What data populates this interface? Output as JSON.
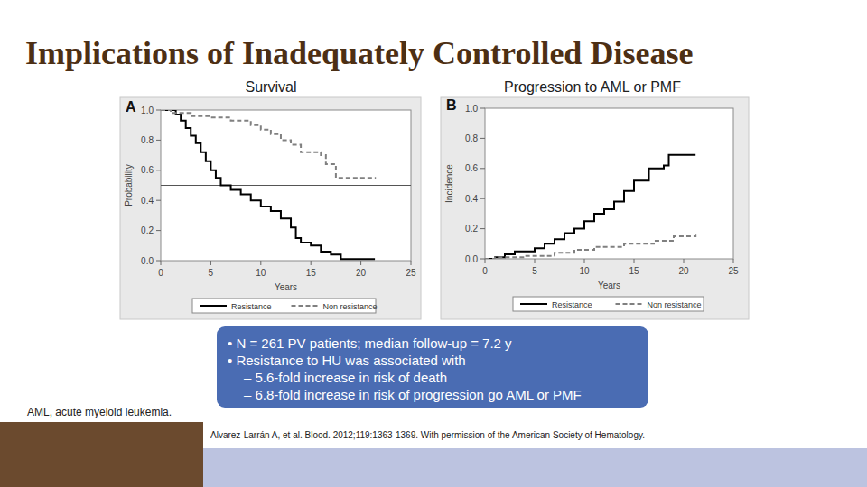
{
  "title": "Implications of Inadequately Controlled Disease",
  "chart_data": [
    {
      "type": "step",
      "title": "Survival",
      "panel_label": "A",
      "x_label": "Years",
      "y_label": "Probability",
      "xlim": [
        0,
        25
      ],
      "ylim": [
        0,
        1
      ],
      "xticks": [
        0,
        5,
        10,
        15,
        20,
        25
      ],
      "yticks": [
        {
          "value": 0,
          "label": "0.0"
        },
        0.2,
        0.4,
        0.6,
        0.8,
        {
          "value": 1,
          "label": "1.0"
        }
      ],
      "legend": "bottom",
      "reference_lines": [
        0.5
      ],
      "series": [
        {
          "name": "Resistance",
          "color": "#000000",
          "line_style": "solid",
          "x": [
            0,
            1.5,
            2,
            2.5,
            3,
            3.5,
            4,
            4.5,
            5,
            5.5,
            6,
            7,
            8,
            9,
            10,
            11,
            12,
            13,
            13.5,
            14,
            15,
            16,
            17,
            18,
            21.4
          ],
          "values": [
            1,
            0.97,
            0.93,
            0.88,
            0.83,
            0.78,
            0.72,
            0.66,
            0.6,
            0.55,
            0.5,
            0.47,
            0.44,
            0.4,
            0.36,
            0.33,
            0.28,
            0.22,
            0.15,
            0.12,
            0.1,
            0.06,
            0.04,
            0.01,
            0.01
          ]
        },
        {
          "name": "Non resistance",
          "color": "#808080",
          "line_style": "dashed",
          "x": [
            0,
            1,
            3,
            5,
            7,
            9,
            10,
            11,
            12,
            13,
            14,
            16,
            16.5,
            17.5,
            21.5
          ],
          "values": [
            1,
            0.98,
            0.96,
            0.95,
            0.93,
            0.9,
            0.87,
            0.84,
            0.8,
            0.77,
            0.72,
            0.7,
            0.64,
            0.55,
            0.55
          ]
        }
      ]
    },
    {
      "type": "step",
      "title": "Progression to AML or PMF",
      "panel_label": "B",
      "x_label": "Years",
      "y_label": "Incidence",
      "xlim": [
        0,
        25
      ],
      "ylim": [
        0,
        1
      ],
      "xticks": [
        0,
        5,
        10,
        15,
        20,
        25
      ],
      "yticks": [
        {
          "value": 0,
          "label": "0.0"
        },
        0.2,
        0.4,
        0.6,
        0.8,
        {
          "value": 1,
          "label": "1.0"
        }
      ],
      "legend": "bottom",
      "series": [
        {
          "name": "Resistance",
          "color": "#000000",
          "line_style": "solid",
          "x": [
            0,
            1,
            2,
            3,
            5,
            6,
            7,
            8,
            9,
            10,
            11,
            12,
            13,
            14,
            15,
            16.5,
            18,
            18.5,
            21.2
          ],
          "values": [
            0,
            0.01,
            0.03,
            0.05,
            0.07,
            0.1,
            0.13,
            0.17,
            0.2,
            0.25,
            0.3,
            0.33,
            0.38,
            0.45,
            0.52,
            0.6,
            0.62,
            0.69,
            0.69
          ]
        },
        {
          "name": "Non resistance",
          "color": "#808080",
          "line_style": "dashed",
          "x": [
            0,
            1,
            4,
            7,
            9,
            11,
            14,
            17,
            19,
            21.2
          ],
          "values": [
            0,
            0.01,
            0.02,
            0.04,
            0.06,
            0.08,
            0.1,
            0.12,
            0.15,
            0.16
          ]
        }
      ]
    }
  ],
  "note": [
    {
      "text": "• N = 261 PV patients; median follow-up = 7.2 y",
      "sub": []
    },
    {
      "text": "• Resistance to HU was associated with",
      "sub": [
        "– 5.6-fold increase in risk of death",
        "– 6.8-fold increase in risk of progression go AML or PMF"
      ]
    }
  ],
  "footnote": "AML, acute myeloid leukemia.",
  "citation": "Alvarez-Larrán A, et al. Blood. 2012;119:1363-1369. With permission of the American Society of Hematology."
}
